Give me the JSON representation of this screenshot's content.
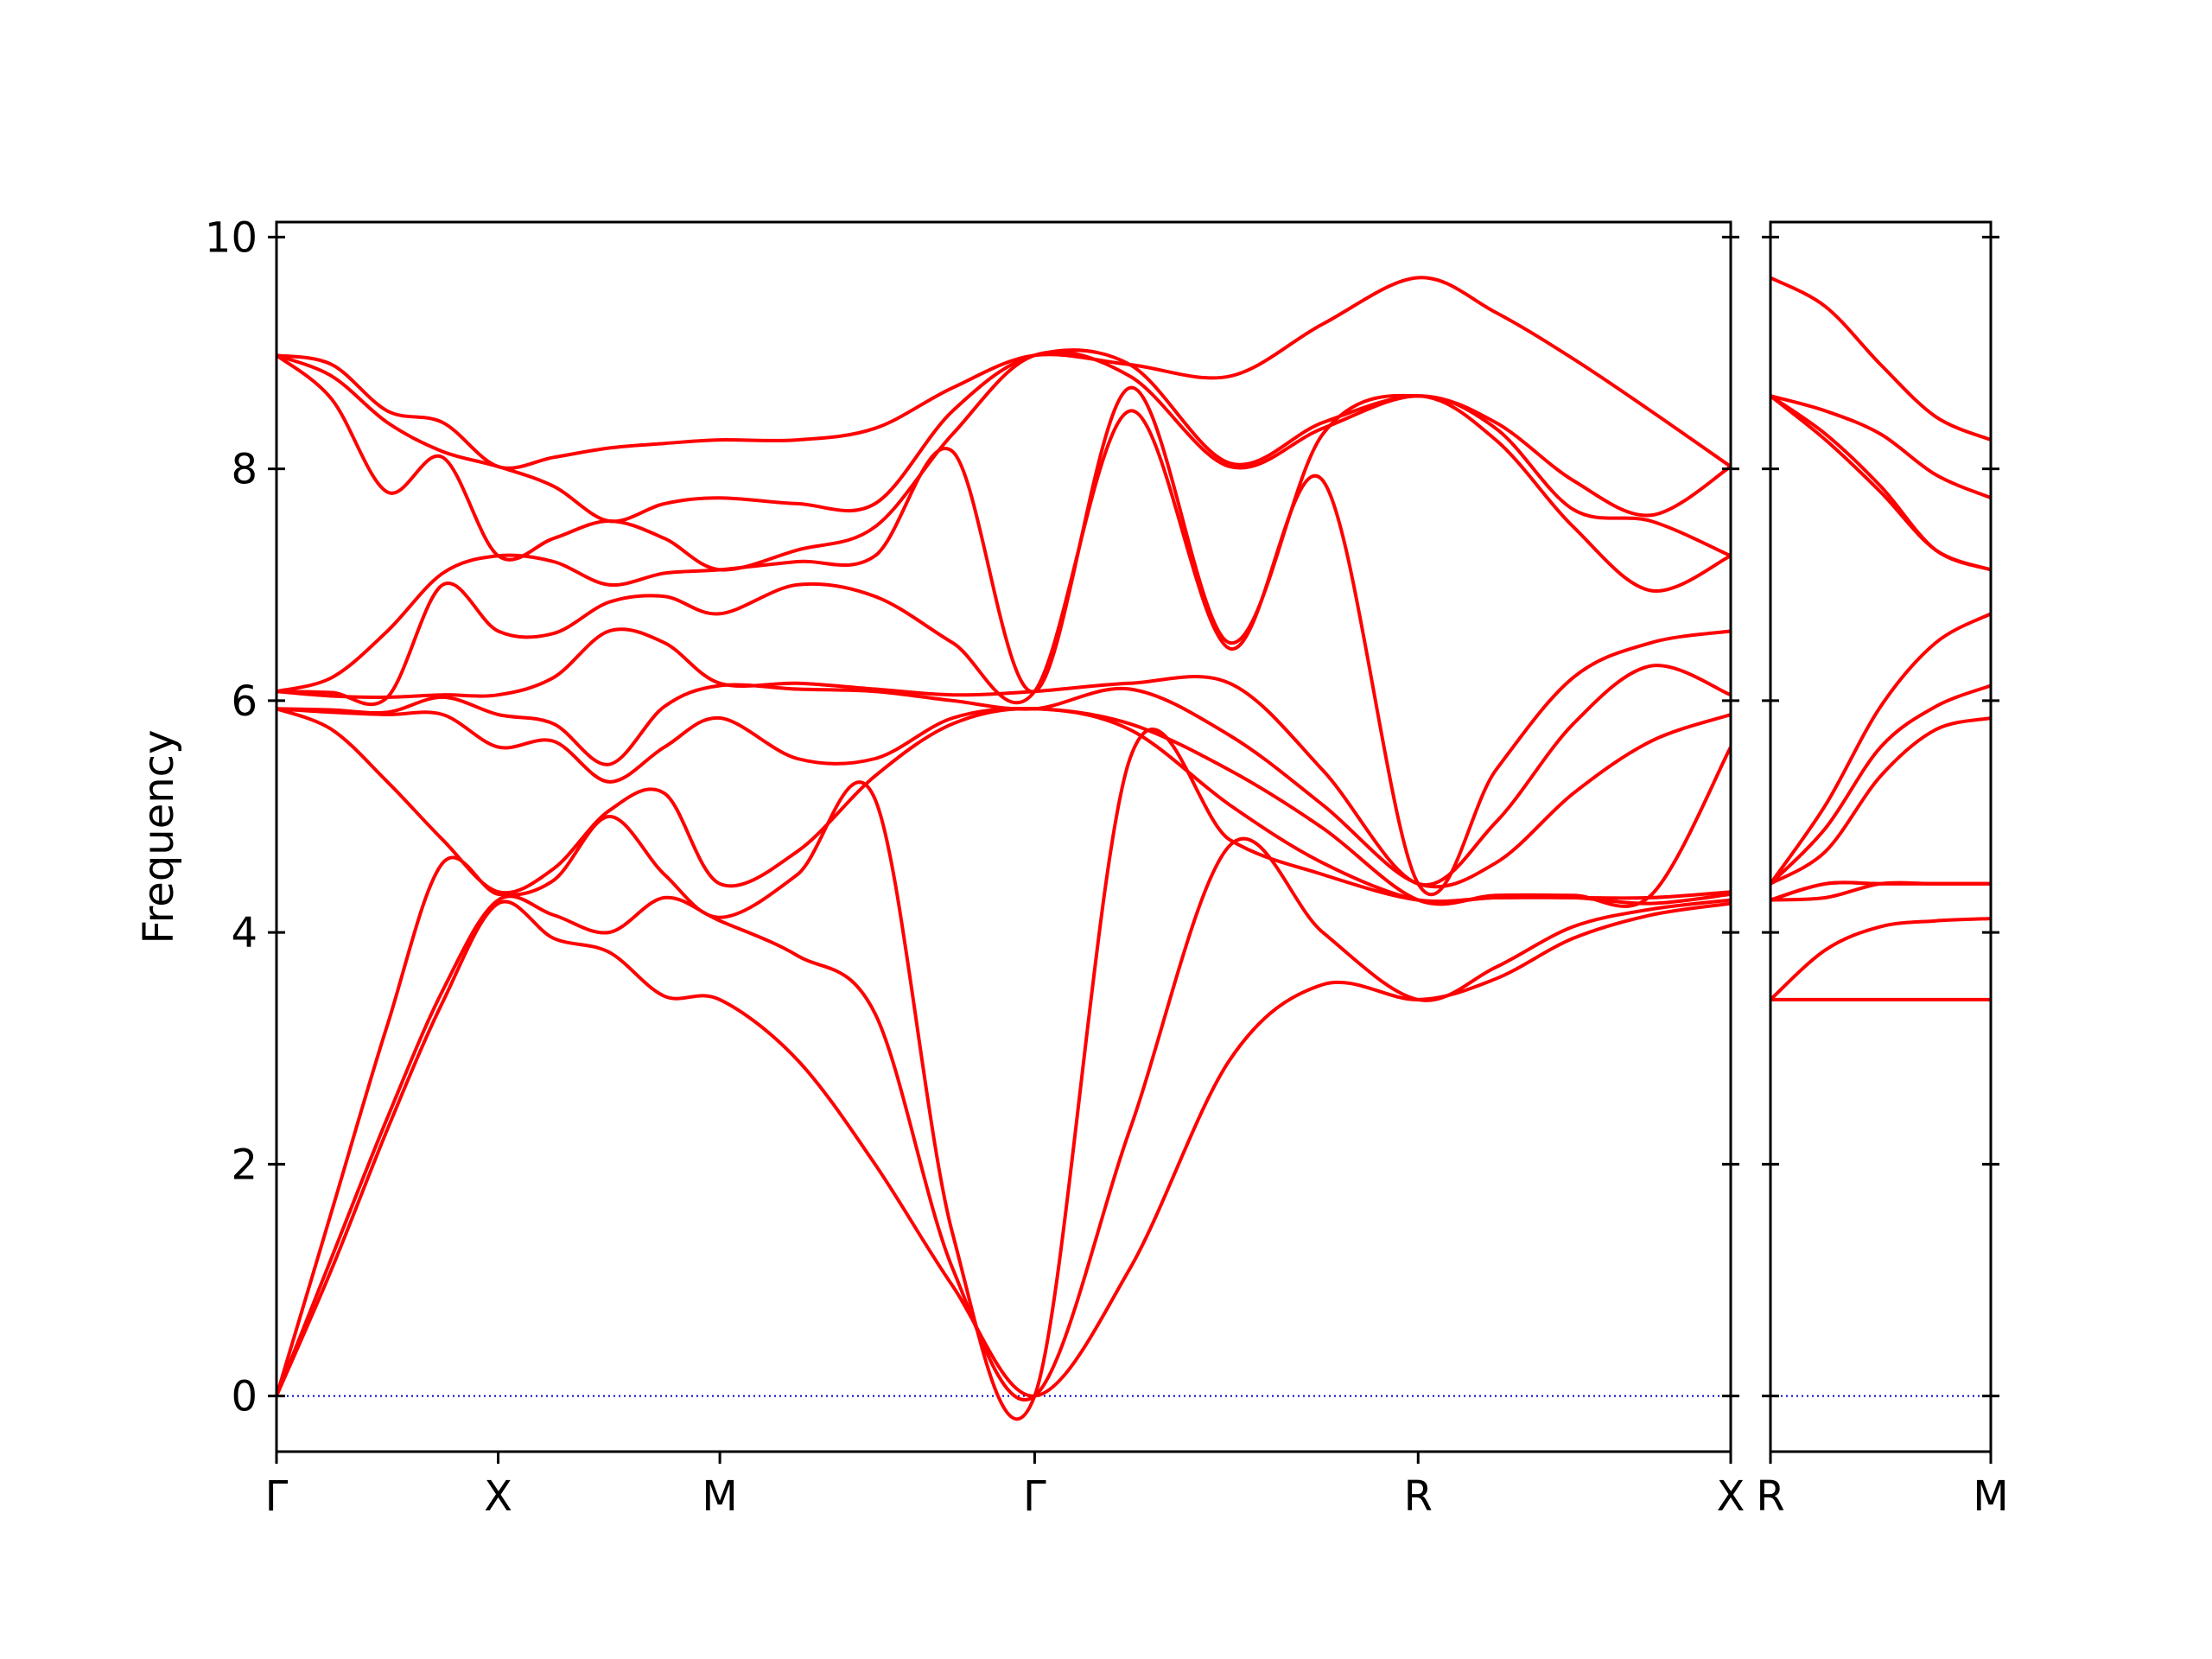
{
  "chart_data": [
    {
      "type": "line",
      "y_label": "Frequency",
      "color": "#ff0000",
      "tick_labels": true,
      "hline": {
        "value": 0,
        "color": "#0000cc",
        "style": "dotted"
      },
      "xlim": [
        0,
        6.56
      ],
      "ylim": [
        -0.48,
        10.13
      ],
      "xticks": [
        {
          "value": 0,
          "label": "Γ"
        },
        {
          "value": 1,
          "label": "X"
        },
        {
          "value": 2,
          "label": "M"
        },
        {
          "value": 3.42,
          "label": "Γ"
        },
        {
          "value": 5.15,
          "label": "R"
        },
        {
          "value": 6.56,
          "label": "X"
        }
      ],
      "yticks": [
        0,
        2,
        4,
        6,
        8,
        10
      ],
      "x": [
        0,
        0.25,
        0.5,
        0.75,
        1,
        1.25,
        1.5,
        1.75,
        2,
        2.35,
        2.7,
        3.05,
        3.42,
        3.85,
        4.3,
        4.72,
        5.15,
        5.5,
        5.85,
        6.2,
        6.56
      ],
      "series": [
        {
          "values": [
            0,
            1.1,
            2.3,
            3.4,
            4.25,
            3.95,
            3.83,
            3.45,
            3.42,
            2.9,
            2.0,
            0.95,
            0,
            1.1,
            2.9,
            3.55,
            3.42,
            3.6,
            3.95,
            4.15,
            4.25
          ]
        },
        {
          "values": [
            0,
            1.2,
            2.4,
            3.5,
            4.28,
            4.15,
            4.0,
            4.3,
            4.1,
            3.8,
            3.3,
            1.1,
            0,
            2.3,
            4.75,
            4.0,
            3.42,
            3.7,
            4.05,
            4.2,
            4.28
          ]
        },
        {
          "values": [
            0,
            1.6,
            3.2,
            4.6,
            4.33,
            4.45,
            5.0,
            4.5,
            4.13,
            4.5,
            5.15,
            1.4,
            0,
            5.5,
            4.8,
            4.5,
            4.28,
            4.3,
            4.3,
            4.25,
            4.33
          ]
        },
        {
          "values": [
            5.93,
            5.75,
            5.3,
            4.8,
            4.35,
            4.55,
            5.05,
            5.2,
            4.42,
            4.7,
            5.35,
            5.8,
            5.93,
            5.75,
            5.1,
            4.6,
            4.28,
            4.3,
            4.3,
            4.3,
            4.35
          ]
        },
        {
          "values": [
            5.93,
            5.9,
            5.88,
            5.88,
            5.6,
            5.65,
            5.3,
            5.6,
            5.85,
            5.5,
            5.5,
            5.85,
            5.93,
            5.8,
            5.4,
            4.9,
            4.28,
            4.32,
            4.32,
            4.32,
            5.6
          ]
        },
        {
          "values": [
            5.93,
            5.92,
            5.9,
            6.03,
            5.88,
            5.8,
            5.45,
            5.95,
            6.13,
            6.1,
            6.08,
            6.0,
            5.93,
            6.1,
            5.7,
            5.1,
            4.42,
            4.6,
            5.2,
            5.65,
            5.88
          ]
        },
        {
          "values": [
            6.08,
            6.04,
            6.03,
            6.05,
            6.05,
            6.2,
            6.6,
            6.5,
            6.15,
            6.15,
            6.1,
            6.05,
            6.08,
            6.15,
            6.15,
            5.4,
            4.42,
            4.95,
            5.8,
            6.3,
            6.05
          ]
        },
        {
          "values": [
            6.08,
            6.07,
            6.03,
            7.0,
            6.6,
            6.58,
            6.85,
            6.9,
            6.75,
            7.0,
            6.9,
            6.5,
            6.08,
            8.5,
            6.45,
            7.9,
            4.42,
            5.4,
            6.2,
            6.5,
            6.6
          ]
        },
        {
          "values": [
            6.08,
            6.2,
            6.6,
            7.1,
            7.25,
            7.2,
            7.0,
            7.1,
            7.13,
            7.2,
            7.25,
            8.15,
            6.08,
            8.7,
            6.5,
            8.3,
            8.63,
            8.25,
            7.5,
            6.95,
            7.25
          ]
        },
        {
          "values": [
            8.98,
            8.6,
            7.8,
            8.1,
            7.25,
            7.4,
            7.55,
            7.4,
            7.13,
            7.3,
            7.5,
            8.3,
            8.98,
            8.8,
            8.02,
            8.35,
            8.63,
            8.35,
            7.65,
            7.55,
            7.25
          ]
        },
        {
          "values": [
            8.98,
            8.8,
            8.4,
            8.15,
            8.02,
            7.85,
            7.55,
            7.7,
            7.75,
            7.7,
            7.7,
            8.5,
            8.98,
            8.9,
            8.05,
            8.4,
            8.63,
            8.4,
            7.9,
            7.6,
            8.02
          ]
        },
        {
          "values": [
            8.98,
            8.9,
            8.5,
            8.4,
            8.02,
            8.1,
            8.18,
            8.22,
            8.25,
            8.25,
            8.35,
            8.7,
            8.98,
            8.9,
            8.8,
            9.25,
            9.65,
            9.35,
            8.95,
            8.5,
            8.02
          ]
        }
      ]
    },
    {
      "type": "line",
      "color": "#ff0000",
      "tick_labels": false,
      "hline": {
        "value": 0,
        "color": "#0000cc",
        "style": "dotted"
      },
      "xlim": [
        0,
        1
      ],
      "ylim": [
        -0.48,
        10.13
      ],
      "xticks": [
        {
          "value": 0,
          "label": "R"
        },
        {
          "value": 1,
          "label": "M"
        }
      ],
      "yticks": [
        0,
        2,
        4,
        6,
        8,
        10
      ],
      "x": [
        0,
        0.25,
        0.5,
        0.75,
        1
      ],
      "series": [
        {
          "values": [
            3.42,
            3.42,
            3.42,
            3.42,
            3.42
          ]
        },
        {
          "values": [
            3.42,
            3.85,
            4.05,
            4.1,
            4.12
          ]
        },
        {
          "values": [
            4.28,
            4.3,
            4.42,
            4.42,
            4.42
          ]
        },
        {
          "values": [
            4.28,
            4.42,
            4.42,
            4.42,
            4.42
          ]
        },
        {
          "values": [
            4.28,
            4.42,
            4.42,
            4.42,
            4.42
          ]
        },
        {
          "values": [
            4.42,
            4.7,
            5.35,
            5.75,
            5.85
          ]
        },
        {
          "values": [
            4.42,
            4.9,
            5.6,
            5.95,
            6.13
          ]
        },
        {
          "values": [
            4.42,
            5.1,
            5.95,
            6.5,
            6.75
          ]
        },
        {
          "values": [
            8.63,
            8.25,
            7.8,
            7.3,
            7.13
          ]
        },
        {
          "values": [
            8.63,
            8.3,
            7.85,
            7.3,
            7.13
          ]
        },
        {
          "values": [
            8.63,
            8.5,
            8.3,
            7.95,
            7.75
          ]
        },
        {
          "values": [
            9.65,
            9.4,
            8.9,
            8.45,
            8.25
          ]
        }
      ]
    }
  ]
}
